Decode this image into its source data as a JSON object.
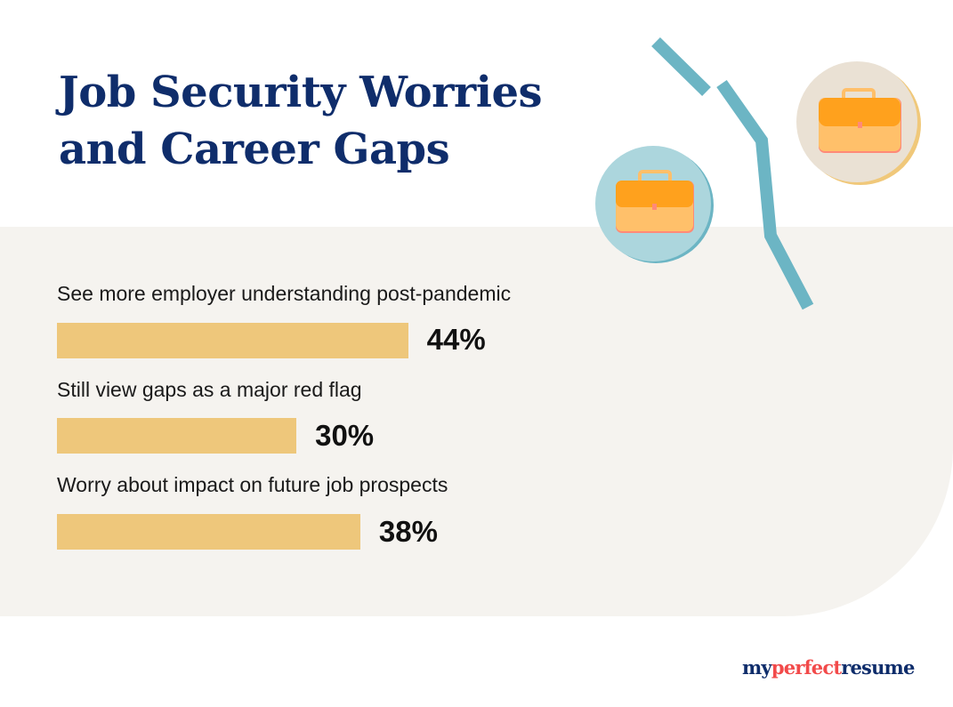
{
  "title_lines": [
    "Job Security Worries",
    "and Career Gaps"
  ],
  "chart_data": {
    "type": "bar",
    "orientation": "horizontal",
    "categories": [
      "See more employer understanding post-pandemic",
      "Still view gaps as a major red flag",
      "Worry about impact on future job prospects"
    ],
    "values": [
      44,
      30,
      38
    ],
    "value_labels": [
      "44%",
      "30%",
      "38%"
    ],
    "unit": "%",
    "bar_color": "#eec77b"
  },
  "logo": {
    "part1": "my",
    "part2": "perfect",
    "part3": "resume"
  },
  "colors": {
    "title": "#0f2d6b",
    "accent_line": "#6cb5c4",
    "panel": "#f5f3ef",
    "logo_red": "#f24a4a"
  }
}
